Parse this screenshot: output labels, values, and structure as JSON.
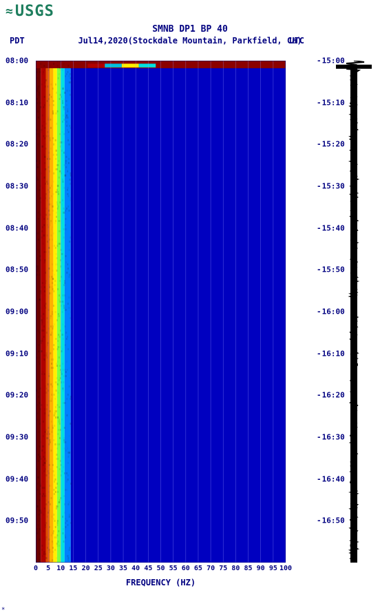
{
  "logo": {
    "prefix": "≈",
    "text": "USGS",
    "color": "#1e7e5e"
  },
  "title": "SMNB DP1 BP 40",
  "subtitle": "Jul14,2020(Stockdale Mountain, Parkfield, Ca)",
  "tz_left": "PDT",
  "tz_right": "UTC",
  "x_label": "FREQUENCY (HZ)",
  "footnote": "*",
  "spectrogram": {
    "type": "spectrogram",
    "xlim": [
      0,
      100
    ],
    "x_ticks": [
      0,
      5,
      10,
      15,
      20,
      25,
      30,
      35,
      40,
      45,
      50,
      55,
      60,
      65,
      70,
      75,
      80,
      85,
      90,
      95,
      100
    ],
    "x_tick_labels": [
      "0",
      "5",
      "10",
      "15",
      "20",
      "25",
      "30",
      "35",
      "40",
      "45",
      "50",
      "55",
      "60",
      "65",
      "70",
      "75",
      "80",
      "85",
      "90",
      "95",
      "100"
    ],
    "y_left_ticks": [
      "08:00",
      "08:10",
      "08:20",
      "08:30",
      "08:40",
      "08:50",
      "09:00",
      "09:10",
      "09:20",
      "09:30",
      "09:40",
      "09:50"
    ],
    "y_right_ticks": [
      "15:00",
      "15:10",
      "15:20",
      "15:30",
      "15:40",
      "15:50",
      "16:00",
      "16:10",
      "16:20",
      "16:30",
      "16:40",
      "16:50"
    ],
    "y_tick_positions_pct": [
      0,
      8.33,
      16.67,
      25,
      33.33,
      41.67,
      50,
      58.33,
      66.67,
      75,
      83.33,
      91.67
    ],
    "bg_color": "#0000c0",
    "grid_color": "#9999ff",
    "color_bands": [
      {
        "start_pct": 0,
        "end_pct": 2,
        "color": "#6b0000"
      },
      {
        "start_pct": 2,
        "end_pct": 4,
        "color": "#b00000"
      },
      {
        "start_pct": 4,
        "end_pct": 5.5,
        "color": "#e05000"
      },
      {
        "start_pct": 5.5,
        "end_pct": 7,
        "color": "#ffb000"
      },
      {
        "start_pct": 7,
        "end_pct": 8.5,
        "color": "#fff000"
      },
      {
        "start_pct": 8.5,
        "end_pct": 10,
        "color": "#80ff40"
      },
      {
        "start_pct": 10,
        "end_pct": 11.5,
        "color": "#00e0e0"
      },
      {
        "start_pct": 11.5,
        "end_pct": 14,
        "color": "#0080ff"
      },
      {
        "start_pct": 14,
        "end_pct": 100,
        "color": "#0000c0"
      }
    ],
    "top_band": {
      "height_pct": 1.5,
      "color": "#8b0000",
      "extra_start_pct": 14,
      "extra_end_pct": 48,
      "extra_colors": [
        "#8b0000",
        "#b00000",
        "#00c0e0",
        "#fff000",
        "#00e0e0"
      ]
    },
    "label_color": "#000080",
    "axis_fontsize": 11
  },
  "waveform": {
    "color": "#000000",
    "head_width": 52,
    "head_pos_pct": 1.2,
    "stem_width": 10
  }
}
